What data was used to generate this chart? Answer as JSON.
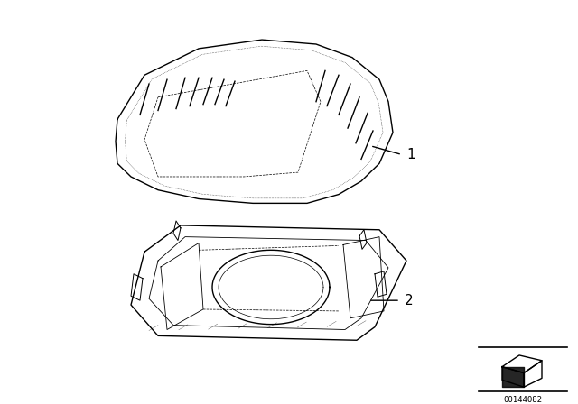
{
  "background_color": "#ffffff",
  "title": "",
  "part_number": "00144082",
  "label1": "1",
  "label2": "2",
  "line_color": "#000000",
  "figsize": [
    6.4,
    4.48
  ],
  "dpi": 100
}
